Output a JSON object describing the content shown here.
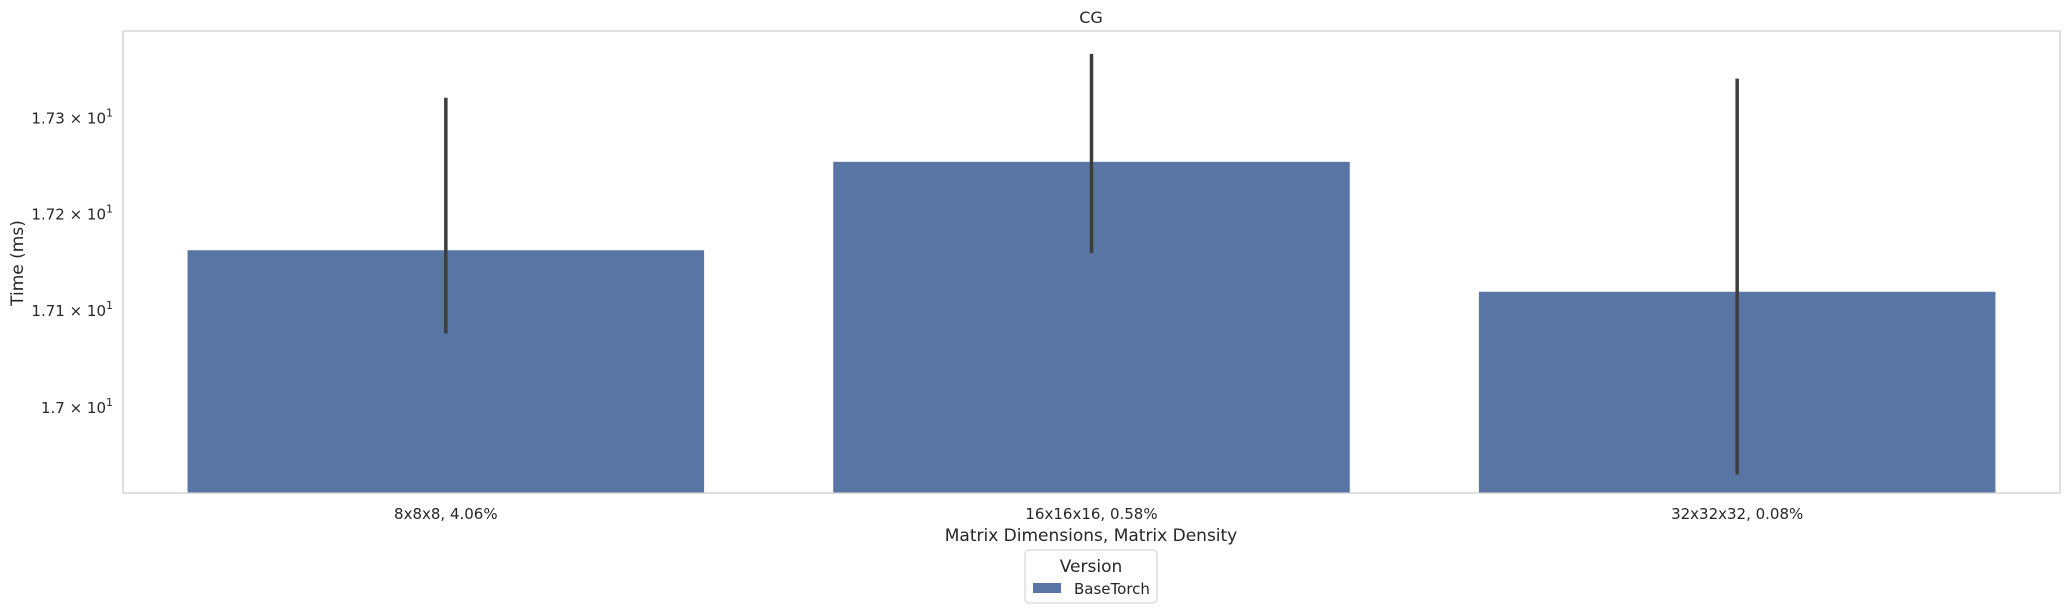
{
  "chart_data": {
    "type": "bar",
    "title": "CG",
    "xlabel": "Matrix Dimensions, Matrix Density",
    "ylabel": "Time (ms)",
    "yscale": "log",
    "ylim": [
      16.913,
      17.392
    ],
    "grid": false,
    "categories": [
      "8x8x8, 4.06%",
      "16x16x16, 0.58%",
      "32x32x32, 0.08%"
    ],
    "yticks": [
      {
        "value": 17.0,
        "mantissa": "1.7"
      },
      {
        "value": 17.1,
        "mantissa": "1.71"
      },
      {
        "value": 17.2,
        "mantissa": "1.72"
      },
      {
        "value": 17.3,
        "mantissa": "1.73"
      }
    ],
    "tick_base": "10",
    "tick_exponent": "1",
    "series": [
      {
        "name": "BaseTorch",
        "color": "#5975a4",
        "values": [
          17.163,
          17.255,
          17.12
        ],
        "error_low": [
          17.077,
          17.16,
          16.932
        ],
        "error_high": [
          17.322,
          17.368,
          17.342
        ]
      }
    ],
    "legend": {
      "title": "Version",
      "placement": "bottom-center"
    }
  }
}
